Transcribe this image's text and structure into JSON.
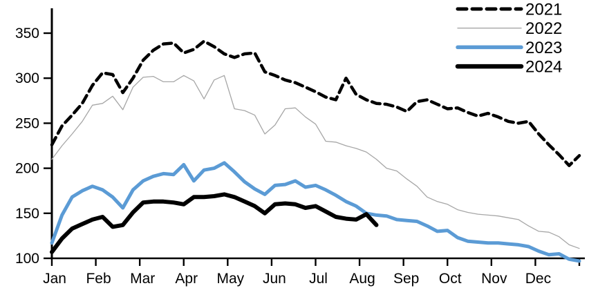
{
  "chart_data": {
    "type": "line",
    "x_axis": {
      "tick_labels": [
        "Jan",
        "Feb",
        "Mar",
        "Apr",
        "May",
        "Jun",
        "Jul",
        "Aug",
        "Sep",
        "Oct",
        "Nov",
        "Dec"
      ],
      "unit": "week-of-year",
      "has_year_end_tick": true
    },
    "y_axis": {
      "tick_labels": [
        "100",
        "150",
        "200",
        "250",
        "300",
        "350"
      ],
      "ylim": [
        100,
        350
      ],
      "grid": false
    },
    "legend": {
      "position": "top-right",
      "entries": [
        {
          "label": "2021",
          "color": "#000000",
          "line_style": "dashed"
        },
        {
          "label": "2022",
          "color": "#a6a6a6",
          "line_style": "thin-solid"
        },
        {
          "label": "2023",
          "color": "#5b9bd5",
          "line_style": "thick-solid"
        },
        {
          "label": "2024",
          "color": "#000000",
          "line_style": "thick-solid"
        }
      ]
    },
    "series": [
      {
        "name": "2021",
        "color": "#000000",
        "style": "dashed",
        "values": [
          226,
          247,
          259,
          272,
          292,
          306,
          304,
          284,
          300,
          320,
          331,
          338,
          339,
          328,
          332,
          341,
          335,
          327,
          323,
          327,
          328,
          307,
          303,
          298,
          295,
          290,
          285,
          279,
          276,
          300,
          282,
          276,
          272,
          271,
          268,
          263,
          274,
          276,
          271,
          266,
          267,
          262,
          258,
          261,
          257,
          252,
          250,
          252,
          238,
          226,
          215,
          203,
          214
        ]
      },
      {
        "name": "2022",
        "color": "#a6a6a6",
        "style": "thin-solid",
        "values": [
          210,
          225,
          238,
          252,
          270,
          272,
          280,
          265,
          290,
          301,
          302,
          296,
          296,
          303,
          297,
          277,
          298,
          303,
          266,
          264,
          259,
          238,
          248,
          266,
          267,
          257,
          249,
          230,
          229,
          225,
          222,
          218,
          210,
          200,
          197,
          188,
          180,
          168,
          163,
          160,
          154,
          151,
          149,
          148,
          147,
          145,
          143,
          136,
          130,
          129,
          124,
          115,
          111
        ]
      },
      {
        "name": "2023",
        "color": "#5b9bd5",
        "style": "thick-solid",
        "values": [
          117,
          148,
          168,
          175,
          180,
          176,
          168,
          156,
          176,
          186,
          191,
          194,
          193,
          204,
          186,
          198,
          200,
          206,
          196,
          185,
          177,
          171,
          181,
          182,
          186,
          179,
          181,
          176,
          170,
          163,
          158,
          150,
          148,
          147,
          143,
          142,
          141,
          136,
          130,
          131,
          123,
          119,
          118,
          117,
          117,
          116,
          115,
          113,
          108,
          104,
          105,
          99,
          97
        ]
      },
      {
        "name": "2024",
        "color": "#000000",
        "style": "thick-solid",
        "values": [
          107,
          122,
          133,
          138,
          143,
          146,
          135,
          137,
          151,
          162,
          163,
          163,
          162,
          160,
          168,
          168,
          169,
          171,
          168,
          163,
          158,
          150,
          160,
          161,
          160,
          156,
          158,
          152,
          146,
          144,
          143,
          149,
          137
        ]
      }
    ],
    "notes": {
      "axis_color": "#000000",
      "series_2024_ends": "mid-August"
    }
  }
}
